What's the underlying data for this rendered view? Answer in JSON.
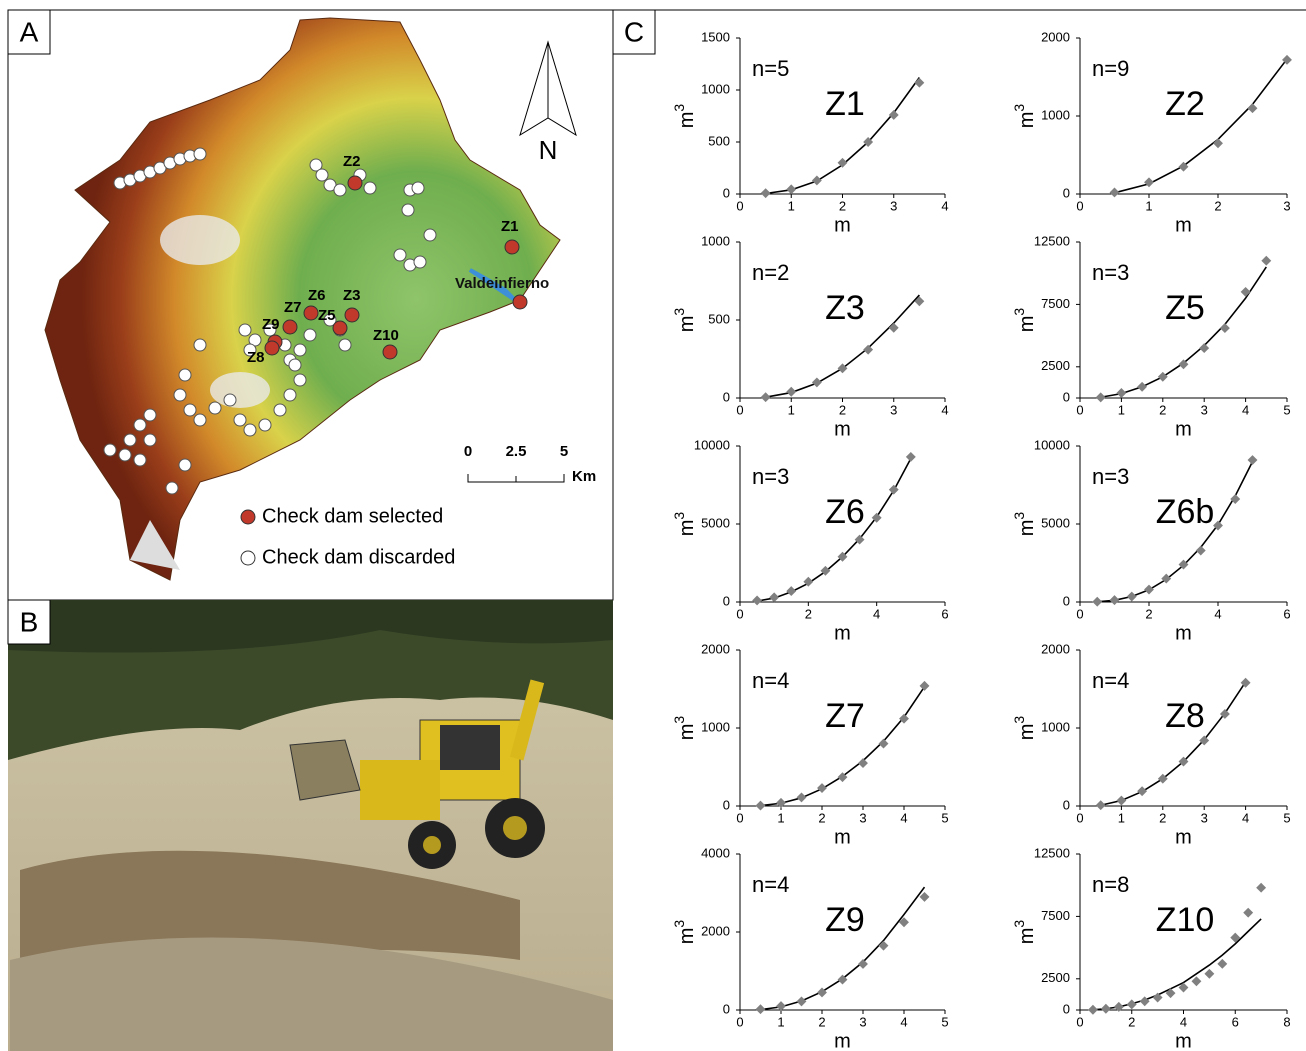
{
  "panel_labels": [
    "A",
    "B",
    "C"
  ],
  "map": {
    "dam_labels": [
      "Z2",
      "Z1",
      "Z6",
      "Z3",
      "Z7",
      "Z5",
      "Z9",
      "Z10",
      "Z8"
    ],
    "reservoir": "Valdeinfierno",
    "north": "N",
    "scale": [
      0,
      2.5,
      5
    ],
    "scale_unit": "Km",
    "legend": [
      "Check dam selected",
      "Check dam discarded"
    ]
  },
  "chart_data": [
    {
      "type": "scatter",
      "title": "Z1",
      "note": "n=5",
      "xlabel": "m",
      "ylabel": "m",
      "ylabel_exponent": "3",
      "xlim": [
        0,
        4
      ],
      "xticks": [
        0,
        1,
        2,
        3,
        4
      ],
      "ylim": [
        0,
        1500
      ],
      "yticks": [
        0,
        500,
        1000,
        1500
      ],
      "x": [
        0.5,
        1,
        1.5,
        2,
        2.5,
        3,
        3.5
      ],
      "values": [
        8,
        45,
        130,
        300,
        500,
        760,
        1070
      ],
      "fit_values": [
        5,
        40,
        125,
        280,
        500,
        780,
        1120
      ],
      "color": "#808080"
    },
    {
      "type": "scatter",
      "title": "Z2",
      "note": "n=9",
      "xlabel": "m",
      "ylabel": "m",
      "ylabel_exponent": "3",
      "xlim": [
        0,
        3
      ],
      "xticks": [
        0,
        1,
        2,
        3
      ],
      "ylim": [
        0,
        2000
      ],
      "yticks": [
        0,
        1000,
        2000
      ],
      "x": [
        0.5,
        1,
        1.5,
        2,
        2.5,
        3
      ],
      "values": [
        20,
        150,
        350,
        650,
        1100,
        1720
      ],
      "fit_values": [
        15,
        130,
        360,
        700,
        1150,
        1730
      ],
      "color": "#808080"
    },
    {
      "type": "scatter",
      "title": "Z3",
      "note": "n=2",
      "xlabel": "m",
      "ylabel": "m",
      "ylabel_exponent": "3",
      "xlim": [
        0,
        4
      ],
      "xticks": [
        0,
        1,
        2,
        3,
        4
      ],
      "ylim": [
        0,
        1000
      ],
      "yticks": [
        0,
        500,
        1000
      ],
      "x": [
        0.5,
        1,
        1.5,
        2,
        2.5,
        3,
        3.5
      ],
      "values": [
        5,
        40,
        100,
        190,
        310,
        450,
        620
      ],
      "fit_values": [
        5,
        35,
        95,
        190,
        320,
        480,
        660
      ],
      "color": "#808080"
    },
    {
      "type": "scatter",
      "title": "Z5",
      "note": "n=3",
      "xlabel": "m",
      "ylabel": "m",
      "ylabel_exponent": "3",
      "xlim": [
        0,
        5
      ],
      "xticks": [
        0,
        1,
        2,
        3,
        4,
        5
      ],
      "ylim": [
        0,
        12500
      ],
      "yticks": [
        0,
        2500,
        7500,
        12500
      ],
      "x": [
        0.5,
        1,
        1.5,
        2,
        2.5,
        3,
        3.5,
        4,
        4.5
      ],
      "values": [
        50,
        400,
        900,
        1700,
        2700,
        4000,
        5600,
        8500,
        11000
      ],
      "fit_values": [
        60,
        350,
        900,
        1700,
        2800,
        4200,
        5900,
        8000,
        10500
      ],
      "color": "#808080"
    },
    {
      "type": "scatter",
      "title": "Z6",
      "note": "n=3",
      "xlabel": "m",
      "ylabel": "m",
      "ylabel_exponent": "3",
      "xlim": [
        0,
        6
      ],
      "xticks": [
        0,
        2,
        4,
        6
      ],
      "ylim": [
        0,
        10000
      ],
      "yticks": [
        0,
        5000,
        10000
      ],
      "x": [
        0.5,
        1,
        1.5,
        2,
        2.5,
        3,
        3.5,
        4,
        4.5,
        5
      ],
      "values": [
        100,
        300,
        700,
        1300,
        2000,
        2900,
        4000,
        5400,
        7200,
        9300
      ],
      "fit_values": [
        60,
        250,
        650,
        1200,
        1950,
        2900,
        4050,
        5450,
        7150,
        9200
      ],
      "color": "#808080"
    },
    {
      "type": "scatter",
      "title": "Z6b",
      "note": "n=3",
      "xlabel": "m",
      "ylabel": "m",
      "ylabel_exponent": "3",
      "xlim": [
        0,
        6
      ],
      "xticks": [
        0,
        2,
        4,
        6
      ],
      "ylim": [
        0,
        10000
      ],
      "yticks": [
        0,
        5000,
        10000
      ],
      "x": [
        0.5,
        1,
        1.5,
        2,
        2.5,
        3,
        3.5,
        4,
        4.5,
        5
      ],
      "values": [
        20,
        120,
        350,
        800,
        1500,
        2400,
        3300,
        4900,
        6600,
        9100
      ],
      "fit_values": [
        15,
        110,
        350,
        780,
        1450,
        2350,
        3500,
        4950,
        6800,
        9000
      ],
      "color": "#808080"
    },
    {
      "type": "scatter",
      "title": "Z7",
      "note": "n=4",
      "xlabel": "m",
      "ylabel": "m",
      "ylabel_exponent": "3",
      "xlim": [
        0,
        5
      ],
      "xticks": [
        0,
        1,
        2,
        3,
        4,
        5
      ],
      "ylim": [
        0,
        2000
      ],
      "yticks": [
        0,
        1000,
        2000
      ],
      "x": [
        0.5,
        1,
        1.5,
        2,
        2.5,
        3,
        3.5,
        4,
        4.5
      ],
      "values": [
        5,
        40,
        110,
        230,
        370,
        550,
        800,
        1120,
        1540
      ],
      "fit_values": [
        5,
        35,
        105,
        220,
        380,
        580,
        830,
        1140,
        1530
      ],
      "color": "#808080"
    },
    {
      "type": "scatter",
      "title": "Z8",
      "note": "n=4",
      "xlabel": "m",
      "ylabel": "m",
      "ylabel_exponent": "3",
      "xlim": [
        0,
        5
      ],
      "xticks": [
        0,
        1,
        2,
        3,
        4,
        5
      ],
      "ylim": [
        0,
        2000
      ],
      "yticks": [
        0,
        1000,
        2000
      ],
      "x": [
        0.5,
        1,
        1.5,
        2,
        2.5,
        3,
        3.5,
        4
      ],
      "values": [
        10,
        70,
        190,
        350,
        570,
        840,
        1180,
        1580
      ],
      "fit_values": [
        10,
        70,
        185,
        350,
        570,
        850,
        1190,
        1590
      ],
      "color": "#808080"
    },
    {
      "type": "scatter",
      "title": "Z9",
      "note": "n=4",
      "xlabel": "m",
      "ylabel": "m",
      "ylabel_exponent": "3",
      "xlim": [
        0,
        5
      ],
      "xticks": [
        0,
        1,
        2,
        3,
        4,
        5
      ],
      "ylim": [
        0,
        4000
      ],
      "yticks": [
        0,
        2000,
        4000
      ],
      "x": [
        0.5,
        1,
        1.5,
        2,
        2.5,
        3,
        3.5,
        4,
        4.5
      ],
      "values": [
        20,
        100,
        220,
        450,
        780,
        1180,
        1650,
        2250,
        2900
      ],
      "fit_values": [
        10,
        80,
        230,
        470,
        800,
        1230,
        1780,
        2450,
        3150
      ],
      "color": "#808080"
    },
    {
      "type": "scatter",
      "title": "Z10",
      "note": "n=8",
      "xlabel": "m",
      "ylabel": "m",
      "ylabel_exponent": "3",
      "xlim": [
        0,
        8
      ],
      "xticks": [
        0,
        2,
        4,
        6,
        8
      ],
      "ylim": [
        0,
        12500
      ],
      "yticks": [
        0,
        2500,
        7500,
        12500
      ],
      "x": [
        0.5,
        1,
        1.5,
        2,
        2.5,
        3,
        3.5,
        4,
        4.5,
        5,
        5.5,
        6,
        6.5,
        7
      ],
      "values": [
        20,
        100,
        250,
        450,
        700,
        1000,
        1350,
        1800,
        2300,
        2900,
        3700,
        5800,
        7800,
        9800
      ],
      "fit_values": [
        20,
        100,
        250,
        500,
        800,
        1200,
        1700,
        2200,
        2900,
        3600,
        4400,
        5300,
        6300,
        7300
      ],
      "color": "#808080"
    }
  ]
}
